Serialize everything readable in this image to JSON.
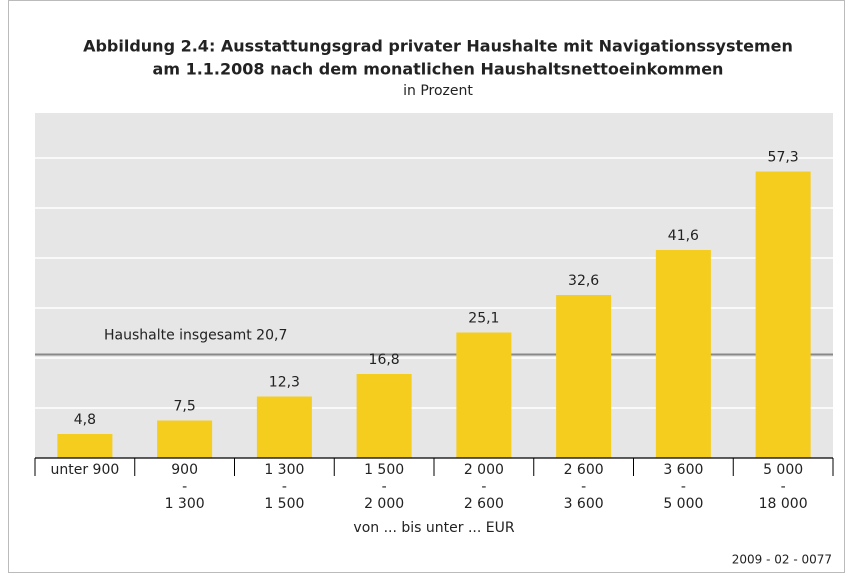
{
  "chart_data": {
    "type": "bar",
    "title": [
      "Abbildung 2.4: Ausstattungsgrad privater Haushalte mit Navigationssystemen",
      "am 1.1.2008 nach dem monatlichen Haushaltsnettoeinkommen"
    ],
    "subtitle": "in Prozent",
    "categories": [
      [
        "unter 900"
      ],
      [
        "900",
        "-",
        "1 300"
      ],
      [
        "1 300",
        "-",
        "1 500"
      ],
      [
        "1 500",
        "-",
        "2 000"
      ],
      [
        "2 000",
        "-",
        "2 600"
      ],
      [
        "2 600",
        "-",
        "3 600"
      ],
      [
        "3 600",
        "-",
        "5 000"
      ],
      [
        "5 000",
        "-",
        "18 000"
      ]
    ],
    "values": [
      4.8,
      7.5,
      12.3,
      16.8,
      25.1,
      32.6,
      41.6,
      57.3
    ],
    "value_labels": [
      "4,8",
      "7,5",
      "12,3",
      "16,8",
      "25,1",
      "32,6",
      "41,6",
      "57,3"
    ],
    "color": "#f5cd1f",
    "ylim": [
      0,
      69
    ],
    "yticks": [
      10,
      20,
      30,
      40,
      50,
      60
    ],
    "grid": true,
    "reference_line": {
      "value": 20.7,
      "label": "Haushalte insgesamt 20,7"
    },
    "xlabel": "von ... bis unter ... EUR",
    "source": "2009 - 02 - 0077"
  }
}
